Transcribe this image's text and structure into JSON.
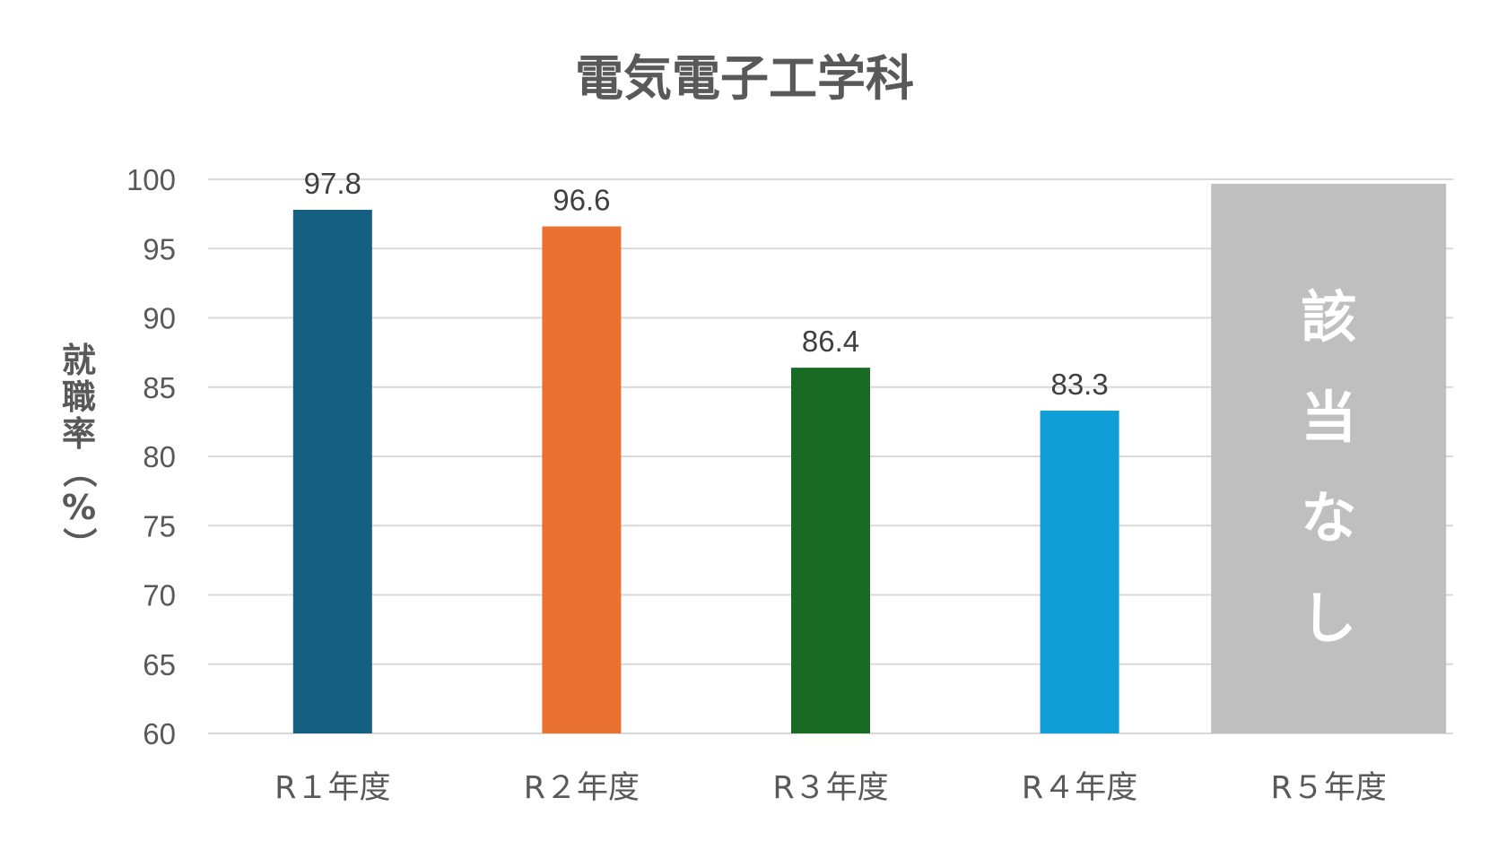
{
  "chart_data": {
    "type": "bar",
    "title": "電気電子工学科",
    "ylabel": "就職率（%）",
    "xlabel": "",
    "ylim": [
      60,
      100
    ],
    "yticks": [
      60,
      65,
      70,
      75,
      80,
      85,
      90,
      95,
      100
    ],
    "grid": true,
    "categories": [
      "R１年度",
      "R２年度",
      "R３年度",
      "R４年度",
      "R５年度"
    ],
    "values": [
      97.8,
      96.6,
      86.4,
      83.3,
      null
    ],
    "data_labels": [
      "97.8",
      "96.6",
      "86.4",
      "83.3",
      ""
    ],
    "colors": [
      "#155f83",
      "#e97132",
      "#196b24",
      "#0f9ed5",
      "#bfbfbf"
    ],
    "not_applicable": {
      "category_index": 4,
      "label": "該当なし",
      "color": "#bfbfbf"
    }
  }
}
